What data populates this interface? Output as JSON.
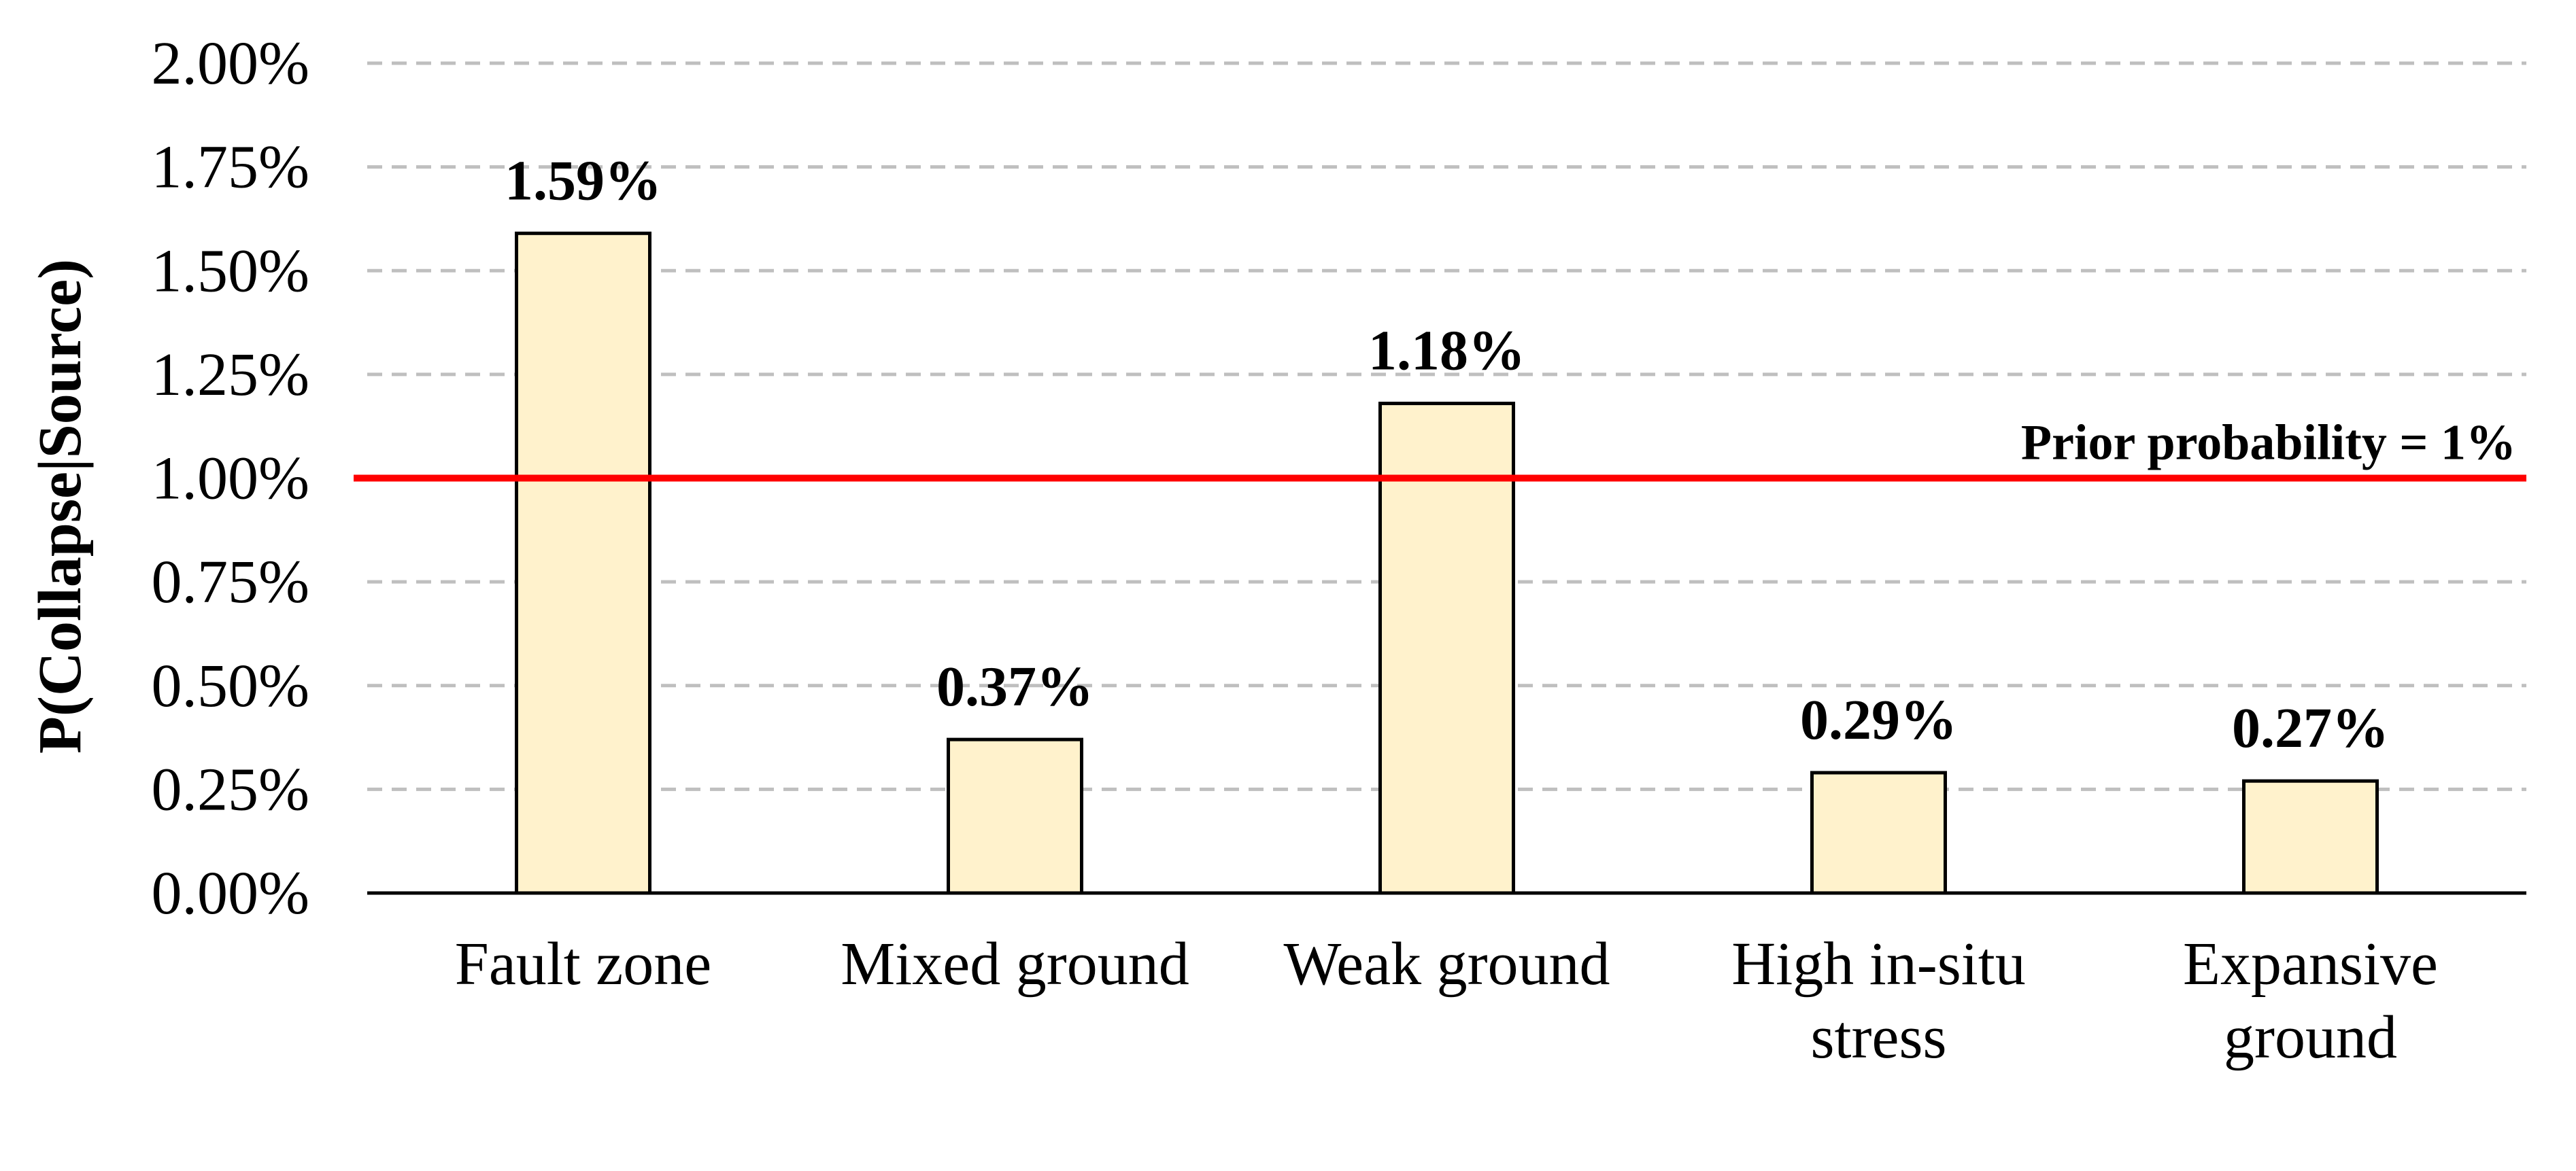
{
  "chart_data": {
    "type": "bar",
    "categories": [
      [
        "Fault zone"
      ],
      [
        "Mixed ground"
      ],
      [
        "Weak ground"
      ],
      [
        "High in-situ",
        "stress"
      ],
      [
        "Expansive",
        "ground"
      ]
    ],
    "values": [
      1.59,
      0.37,
      1.18,
      0.29,
      0.27
    ],
    "data_labels": [
      "1.59%",
      "0.37%",
      "1.18%",
      "0.29%",
      "0.27%"
    ],
    "title": "",
    "xlabel": "",
    "ylabel": "P(Collapse|Source)",
    "ylim": [
      0,
      2.0
    ],
    "yticks": [
      0,
      0.25,
      0.5,
      0.75,
      1.0,
      1.25,
      1.5,
      1.75,
      2.0
    ],
    "ytick_labels": [
      "0.00%",
      "0.25%",
      "0.50%",
      "0.75%",
      "1.00%",
      "1.25%",
      "1.50%",
      "1.75%",
      "2.00%"
    ],
    "reference_line": {
      "value": 1.0,
      "label": "Prior probability = 1%",
      "color": "#ff0000"
    },
    "grid": "horizontal-dashed",
    "bar_fill": "#fff2cc",
    "bar_stroke": "#000000"
  }
}
